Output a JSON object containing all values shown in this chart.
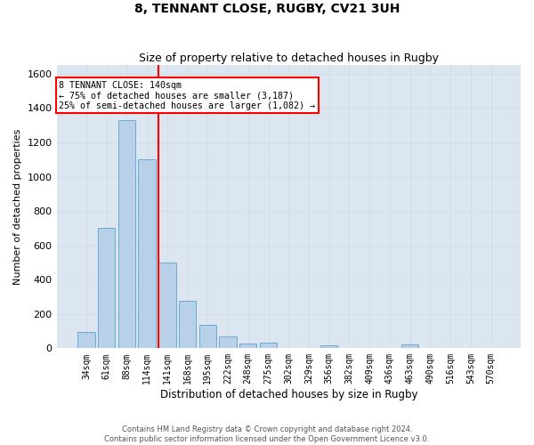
{
  "title": "8, TENNANT CLOSE, RUGBY, CV21 3UH",
  "subtitle": "Size of property relative to detached houses in Rugby",
  "xlabel": "Distribution of detached houses by size in Rugby",
  "ylabel": "Number of detached properties",
  "footer_line1": "Contains HM Land Registry data © Crown copyright and database right 2024.",
  "footer_line2": "Contains public sector information licensed under the Open Government Licence v3.0.",
  "bar_labels": [
    "34sqm",
    "61sqm",
    "88sqm",
    "114sqm",
    "141sqm",
    "168sqm",
    "195sqm",
    "222sqm",
    "248sqm",
    "275sqm",
    "302sqm",
    "329sqm",
    "356sqm",
    "382sqm",
    "409sqm",
    "436sqm",
    "463sqm",
    "490sqm",
    "516sqm",
    "543sqm",
    "570sqm"
  ],
  "bar_values": [
    95,
    700,
    1330,
    1100,
    500,
    275,
    135,
    70,
    30,
    35,
    0,
    0,
    15,
    0,
    0,
    0,
    20,
    0,
    0,
    0,
    0
  ],
  "bar_color": "#b8d0e8",
  "bar_edge_color": "#6aaad4",
  "grid_color": "#d0d8e0",
  "background_color": "#dce6f0",
  "ylim": [
    0,
    1650
  ],
  "yticks": [
    0,
    200,
    400,
    600,
    800,
    1000,
    1200,
    1400,
    1600
  ],
  "annotation_text": "8 TENNANT CLOSE: 140sqm\n← 75% of detached houses are smaller (3,187)\n25% of semi-detached houses are larger (1,082) →",
  "vline_index": 3.575,
  "box_color": "red",
  "vline_color": "red"
}
